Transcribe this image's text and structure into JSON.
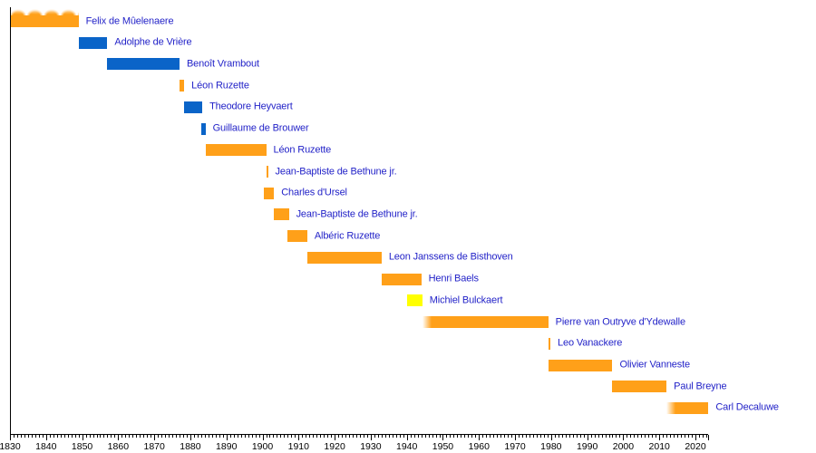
{
  "chart_data": {
    "type": "timeline",
    "description": "Gantt-style term timeline of governors, one row per person",
    "label_color": "#2323C8",
    "axis_color": "#000000",
    "bar_colors": {
      "orange": "#FFA019",
      "blue": "#0A64C8",
      "yellow": "#FFFF00"
    },
    "x_axis": {
      "start_year": 1830,
      "end_year": 2023.5,
      "major_tick_every": 10,
      "minor_tick_every": 1,
      "tick_labels": [
        "1830",
        "1840",
        "1850",
        "1860",
        "1870",
        "1880",
        "1890",
        "1900",
        "1910",
        "1920",
        "1930",
        "1940",
        "1950",
        "1960",
        "1970",
        "1980",
        "1990",
        "2000",
        "2010",
        "2020"
      ]
    },
    "bars": [
      {
        "label": "Felix de Mûelenaere",
        "start": 1830,
        "end": 1849,
        "color": "orange",
        "hatch_top": true
      },
      {
        "label": "Adolphe de Vrière",
        "start": 1849,
        "end": 1857,
        "color": "blue"
      },
      {
        "label": "Benoît Vrambout",
        "start": 1857,
        "end": 1877,
        "color": "blue"
      },
      {
        "label": "Léon Ruzette",
        "start": 1877,
        "end": 1878.3,
        "color": "orange"
      },
      {
        "label": "Theodore Heyvaert",
        "start": 1878.3,
        "end": 1883.3,
        "color": "blue"
      },
      {
        "label": "Guillaume de Brouwer",
        "start": 1883,
        "end": 1884.2,
        "color": "blue"
      },
      {
        "label": "Léon Ruzette",
        "start": 1884.2,
        "end": 1901,
        "color": "orange"
      },
      {
        "label": "Jean-Baptiste de Bethune jr.",
        "start": 1901,
        "end": 1901.5,
        "color": "orange"
      },
      {
        "label": "Charles d'Ursel",
        "start": 1900.3,
        "end": 1903.2,
        "color": "orange"
      },
      {
        "label": "Jean-Baptiste de Bethune jr.",
        "start": 1903.2,
        "end": 1907.3,
        "color": "orange"
      },
      {
        "label": "Albéric Ruzette",
        "start": 1907,
        "end": 1912.4,
        "color": "orange"
      },
      {
        "label": "Leon Janssens de Bisthoven",
        "start": 1912.4,
        "end": 1933,
        "color": "orange"
      },
      {
        "label": "Henri Baels",
        "start": 1933,
        "end": 1944,
        "color": "orange"
      },
      {
        "label": "Michiel Bulckaert",
        "start": 1940,
        "end": 1944.3,
        "color": "yellow"
      },
      {
        "label": "Pierre van Outryve d'Ydewalle",
        "start": 1944.3,
        "end": 1979.2,
        "color": "orange",
        "fade_in": true
      },
      {
        "label": "Leo Vanackere",
        "start": 1979.2,
        "end": 1979.8,
        "color": "orange"
      },
      {
        "label": "Olivier Vanneste",
        "start": 1979.2,
        "end": 1997,
        "color": "orange"
      },
      {
        "label": "Paul Breyne",
        "start": 1997,
        "end": 2012,
        "color": "orange"
      },
      {
        "label": "Carl Decaluwe",
        "start": 2012,
        "end": 2023.6,
        "color": "orange",
        "fade_in": true
      }
    ]
  }
}
